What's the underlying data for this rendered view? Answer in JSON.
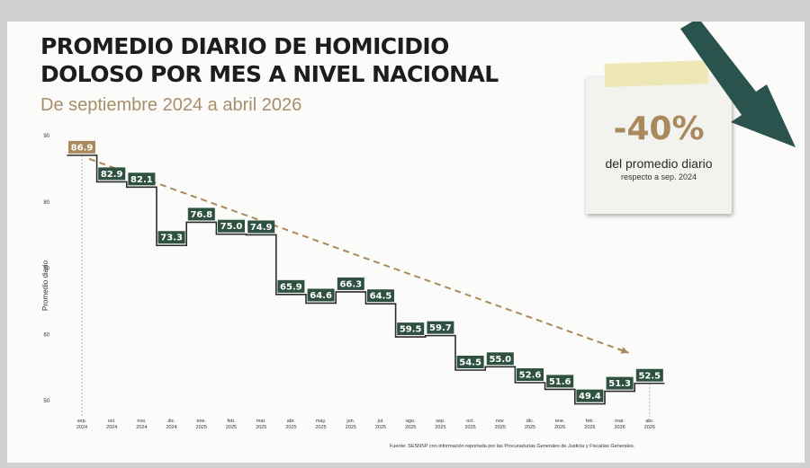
{
  "colors": {
    "bar_fill": "#2f5142",
    "first_fill": "#a98a5d",
    "trend": "#a98a5d",
    "arrow": "#1f4a45",
    "line": "#2b2b2b"
  },
  "chart_data": {
    "type": "line",
    "title_lines": [
      "PROMEDIO DIARIO DE HOMICIDIO",
      "DOLOSO POR MES A NIVEL NACIONAL"
    ],
    "subtitle": "De septiembre 2024 a abril 2026",
    "ylabel": "Promedio diario",
    "ylim": [
      50,
      90
    ],
    "yticks": [
      50,
      60,
      70,
      80,
      90
    ],
    "x": [
      {
        "m": "sep.",
        "y": "2024"
      },
      {
        "m": "oct.",
        "y": "2024"
      },
      {
        "m": "nov.",
        "y": "2024"
      },
      {
        "m": "dic.",
        "y": "2024"
      },
      {
        "m": "ene.",
        "y": "2025"
      },
      {
        "m": "feb.",
        "y": "2025"
      },
      {
        "m": "mar.",
        "y": "2025"
      },
      {
        "m": "abr.",
        "y": "2025"
      },
      {
        "m": "may.",
        "y": "2025"
      },
      {
        "m": "jun.",
        "y": "2025"
      },
      {
        "m": "jul.",
        "y": "2025"
      },
      {
        "m": "ago.",
        "y": "2025"
      },
      {
        "m": "sep.",
        "y": "2025"
      },
      {
        "m": "oct.",
        "y": "2025"
      },
      {
        "m": "nov.",
        "y": "2025"
      },
      {
        "m": "dic.",
        "y": "2025"
      },
      {
        "m": "ene.",
        "y": "2026"
      },
      {
        "m": "feb.",
        "y": "2026"
      },
      {
        "m": "mar.",
        "y": "2026"
      },
      {
        "m": "abr.",
        "y": "2026"
      }
    ],
    "series": [
      {
        "values": [
          86.9,
          82.9,
          82.1,
          73.3,
          76.8,
          75.0,
          74.9,
          65.9,
          64.6,
          66.3,
          64.5,
          59.5,
          59.7,
          54.5,
          55.0,
          52.6,
          51.6,
          49.4,
          51.3,
          52.5
        ],
        "labels": [
          "86.9",
          "82.9",
          "82.1",
          "73.3",
          "76.8",
          "75.0",
          "74.9",
          "65.9",
          "64.6",
          "66.3",
          "64.5",
          "59.5",
          "59.7",
          "54.5",
          "55.0",
          "52.6",
          "51.6",
          "49.4",
          "51.3",
          "52.5"
        ]
      }
    ],
    "trend": {
      "from": 86.9,
      "to": 52.5
    },
    "grid": false
  },
  "note": {
    "value": "-40%",
    "line1": "del promedio diario",
    "line2": "respecto a sep. 2024"
  },
  "source": "Fuente: SESNSP con información reportada por las Procuradurías Generales de Justicia y Fiscalías Generales."
}
